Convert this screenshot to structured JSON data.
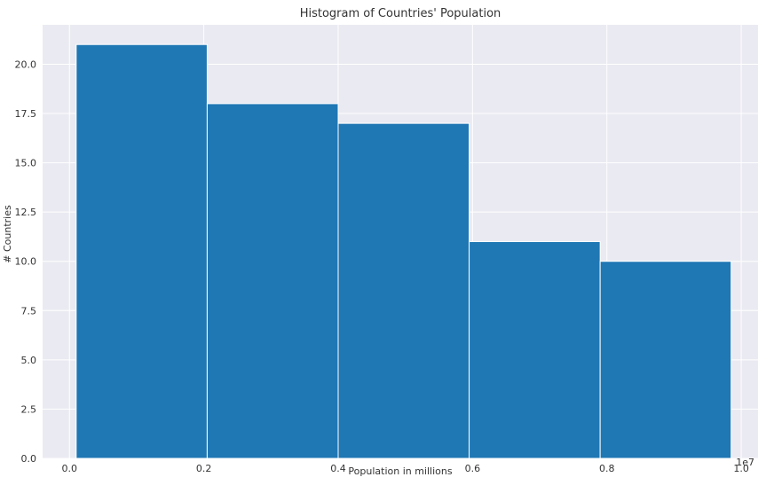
{
  "chart_data": {
    "type": "histogram",
    "title": "Histogram of Countries' Population",
    "xlabel": "Population in millions",
    "ylabel": "# Countries",
    "x_offset_label": "1e7",
    "bins": [
      {
        "start": 0.01,
        "end": 0.205,
        "count": 21
      },
      {
        "start": 0.205,
        "end": 0.4,
        "count": 18
      },
      {
        "start": 0.4,
        "end": 0.595,
        "count": 17
      },
      {
        "start": 0.595,
        "end": 0.79,
        "count": 11
      },
      {
        "start": 0.79,
        "end": 0.985,
        "count": 10
      }
    ],
    "xlim": [
      -0.04,
      1.025
    ],
    "ylim": [
      0,
      22
    ],
    "x_ticks": [
      0.0,
      0.2,
      0.4,
      0.6,
      0.8,
      1.0
    ],
    "x_tick_labels": [
      "0.0",
      "0.2",
      "0.4",
      "0.6",
      "0.8",
      "1.0"
    ],
    "y_ticks": [
      0,
      2.5,
      5,
      7.5,
      10,
      12.5,
      15,
      17.5,
      20
    ],
    "y_tick_labels": [
      "0.0",
      "2.5",
      "5.0",
      "7.5",
      "10.0",
      "12.5",
      "15.0",
      "17.5",
      "20.0"
    ],
    "grid": true,
    "colors": {
      "bar": "#1f77b4",
      "background": "#eaeaf2",
      "grid": "#ffffff",
      "bar_edge": "#ffffff"
    }
  }
}
